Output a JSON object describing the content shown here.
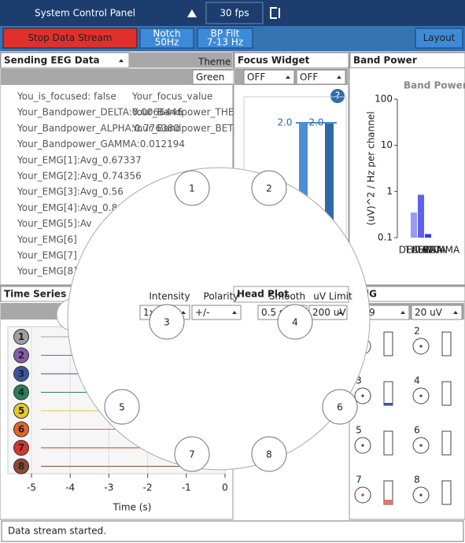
{
  "top_bar": {
    "title": "System Control Panel",
    "fps": "30 fps"
  },
  "toolbar": {
    "stop": "Stop Data Stream",
    "notch": [
      "Notch",
      "50Hz"
    ],
    "bp": [
      "BP Filt",
      "7-13 Hz"
    ],
    "layout": "Layout"
  },
  "networking": {
    "title": "Sending EEG Data",
    "theme_label": "Theme",
    "theme": "Green",
    "lines": [
      "You_is_focused: false",
      "Your_Bandpower_DELTA:0.0066446",
      "Your_Bandpower_ALPHA:0.776380",
      "Your_Bandpower_GAMMA:0.012194",
      "Your_EMG[1]:Avg_0.67337",
      "Your_EMG[2]:Avg_0.74356",
      "Your_EMG[3]:Avg_0.56",
      "Your_EMG[4]:Avg_0.8",
      "Your_EMG[5]:Av",
      "Your_EMG[6]",
      "Your_EMG[7]",
      "Your_EMG[8]"
    ],
    "overlay": [
      "Your_focus_value",
      "Your_Bandpower_THETA:0.0064461",
      "Your_Bandpower_BETA:0.0083"
    ]
  },
  "focus": {
    "title": "Focus Widget",
    "dropdowns": [
      "OFF",
      "OFF"
    ],
    "help": "?",
    "labels": [
      "2.0",
      "2.0"
    ]
  },
  "band_power": {
    "type": "bar",
    "title": "Band Power",
    "chart_title": "Band Power",
    "ylabel": "(uV)^2 / Hz per channel",
    "categories": [
      "DELTA",
      "THETA",
      "ALPHA",
      "BETA",
      "GAMMA"
    ],
    "values": [
      0.35,
      0.85,
      0.12,
      0.1,
      0.1
    ],
    "colors": [
      "#9a9af5",
      "#6060ee",
      "#3a3ae0",
      "#3a3ae0",
      "#3a3ae0"
    ],
    "ylim": [
      0.1,
      100
    ],
    "yticks": [
      100,
      10,
      1,
      0.1
    ],
    "log": true
  },
  "time_series": {
    "title": "Time Series",
    "channels": [
      "1",
      "2",
      "3",
      "4",
      "5",
      "6",
      "7",
      "8"
    ],
    "colors": [
      "#a0a0a0",
      "#8a5bab",
      "#3a54a4",
      "#2e7d5b",
      "#e7c92b",
      "#e5642a",
      "#d8352b",
      "#8b4a36"
    ],
    "xlim": [
      -5,
      0
    ],
    "xticks": [
      -5,
      -4,
      -3,
      -2,
      -1,
      0
    ],
    "xlabel": "Time (s)"
  },
  "head_plot": {
    "title": "Head Plot",
    "controls": [
      {
        "label": "Intensity",
        "value": "1x"
      },
      {
        "label": "Polarity",
        "value": "+/-"
      },
      {
        "label": "Smooth",
        "value": "0.5 s"
      },
      {
        "label": "uV Limit",
        "value": "200 uV"
      }
    ],
    "electrodes": [
      "1",
      "2",
      "3",
      "4",
      "5",
      "6",
      "7",
      "8"
    ]
  },
  "emg": {
    "title": "EMG",
    "dropdowns": [
      "0.99",
      "20 uV"
    ],
    "channels": [
      "1",
      "2",
      "3",
      "4",
      "5",
      "6",
      "7",
      "8"
    ]
  },
  "status": "Data stream started."
}
